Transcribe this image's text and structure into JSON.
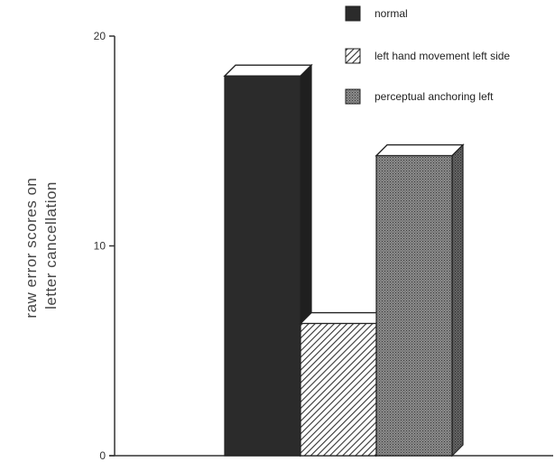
{
  "chart_data": {
    "type": "bar",
    "style": "3d",
    "ylabel": [
      "raw error scores on",
      "letter cancellation"
    ],
    "ylim": [
      0,
      20
    ],
    "yticks": [
      "0",
      "10",
      "20"
    ],
    "legend_position": "top-right",
    "categories": [
      "normal",
      "left hand movement left side",
      "perceptual anchoring left"
    ],
    "values": [
      18.1,
      6.3,
      14.3
    ],
    "fills": [
      "solid-dark",
      "diagonal-hatch",
      "stipple"
    ],
    "colors": {
      "bar_dark": "#2b2b2b",
      "bar_stipple": "#6e6e6e",
      "axis": "#333333"
    }
  }
}
